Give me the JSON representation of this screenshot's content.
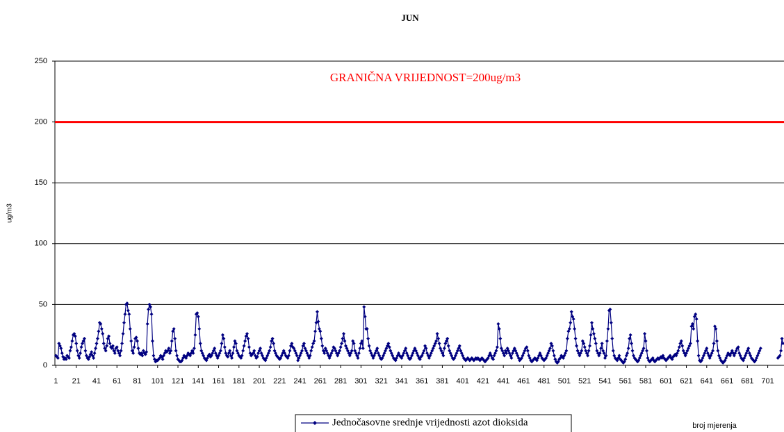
{
  "chart_data": {
    "type": "line",
    "title": "JUN",
    "annotation": "GRANIČNA VRIJEDNOST=200ug/m3",
    "threshold": 200,
    "threshold_color": "#ff0000",
    "y_label": "ug/m3",
    "x_label": "broj mjerenja",
    "xlim": [
      0,
      717
    ],
    "xticks": [
      1,
      21,
      41,
      61,
      81,
      101,
      121,
      141,
      161,
      181,
      201,
      221,
      241,
      261,
      281,
      301,
      321,
      341,
      361,
      381,
      401,
      421,
      441,
      461,
      481,
      501,
      521,
      541,
      561,
      581,
      601,
      621,
      641,
      661,
      681,
      701
    ],
    "ylim": [
      0,
      250
    ],
    "yticks": [
      0,
      50,
      100,
      150,
      200,
      250
    ],
    "grid": true,
    "x": [
      1,
      2,
      3,
      4,
      5,
      6,
      7,
      8,
      9,
      10,
      11,
      12,
      13,
      14,
      15,
      16,
      17,
      18,
      19,
      20,
      21,
      22,
      23,
      24,
      25,
      26,
      27,
      28,
      29,
      30,
      31,
      32,
      33,
      34,
      35,
      36,
      37,
      38,
      39,
      40,
      41,
      42,
      43,
      44,
      45,
      46,
      47,
      48,
      49,
      50,
      51,
      52,
      53,
      54,
      55,
      56,
      57,
      58,
      59,
      60,
      61,
      62,
      63,
      64,
      65,
      66,
      67,
      68,
      69,
      70,
      71,
      72,
      73,
      74,
      75,
      76,
      77,
      78,
      79,
      80,
      81,
      82,
      83,
      84,
      85,
      86,
      87,
      88,
      89,
      90,
      91,
      92,
      93,
      94,
      95,
      96,
      97,
      98,
      99,
      100,
      101,
      102,
      103,
      104,
      105,
      106,
      107,
      108,
      109,
      110,
      111,
      112,
      113,
      114,
      115,
      116,
      117,
      118,
      119,
      120,
      121,
      122,
      123,
      124,
      125,
      126,
      127,
      128,
      129,
      130,
      131,
      132,
      133,
      134,
      135,
      136,
      137,
      138,
      139,
      140,
      141,
      142,
      143,
      144,
      145,
      146,
      147,
      148,
      149,
      150,
      151,
      152,
      153,
      154,
      155,
      156,
      157,
      158,
      159,
      160,
      161,
      162,
      163,
      164,
      165,
      166,
      167,
      168,
      169,
      170,
      171,
      172,
      173,
      174,
      175,
      176,
      177,
      178,
      179,
      180,
      181,
      182,
      183,
      184,
      185,
      186,
      187,
      188,
      189,
      190,
      191,
      192,
      193,
      194,
      195,
      196,
      197,
      198,
      199,
      200,
      201,
      202,
      203,
      204,
      205,
      206,
      207,
      208,
      209,
      210,
      211,
      212,
      213,
      214,
      215,
      216,
      217,
      218,
      219,
      220,
      221,
      222,
      223,
      224,
      225,
      226,
      227,
      228,
      229,
      230,
      231,
      232,
      233,
      234,
      235,
      236,
      237,
      238,
      239,
      240,
      241,
      242,
      243,
      244,
      245,
      246,
      247,
      248,
      249,
      250,
      251,
      252,
      253,
      254,
      255,
      256,
      257,
      258,
      259,
      260,
      261,
      262,
      263,
      264,
      265,
      266,
      267,
      268,
      269,
      270,
      271,
      272,
      273,
      274,
      275,
      276,
      277,
      278,
      279,
      280,
      281,
      282,
      283,
      284,
      285,
      286,
      287,
      288,
      289,
      290,
      291,
      292,
      293,
      294,
      295,
      296,
      297,
      298,
      299,
      300,
      301,
      302,
      303,
      304,
      305,
      306,
      307,
      308,
      309,
      310,
      311,
      312,
      313,
      314,
      315,
      316,
      317,
      318,
      319,
      320,
      321,
      322,
      323,
      324,
      325,
      326,
      327,
      328,
      329,
      330,
      331,
      332,
      333,
      334,
      335,
      336,
      337,
      338,
      339,
      340,
      341,
      342,
      343,
      344,
      345,
      346,
      347,
      348,
      349,
      350,
      351,
      352,
      353,
      354,
      355,
      356,
      357,
      358,
      359,
      360,
      361,
      362,
      363,
      364,
      365,
      366,
      367,
      368,
      369,
      370,
      371,
      372,
      373,
      374,
      375,
      376,
      377,
      378,
      379,
      380,
      381,
      382,
      383,
      384,
      385,
      386,
      387,
      388,
      389,
      390,
      391,
      392,
      393,
      394,
      395,
      396,
      397,
      398,
      399,
      400,
      401,
      402,
      403,
      404,
      405,
      406,
      407,
      408,
      409,
      410,
      411,
      412,
      413,
      414,
      415,
      416,
      417,
      418,
      419,
      420,
      421,
      422,
      423,
      424,
      425,
      426,
      427,
      428,
      429,
      430,
      431,
      432,
      433,
      434,
      435,
      436,
      437,
      438,
      439,
      440,
      441,
      442,
      443,
      444,
      445,
      446,
      447,
      448,
      449,
      450,
      451,
      452,
      453,
      454,
      455,
      456,
      457,
      458,
      459,
      460,
      461,
      462,
      463,
      464,
      465,
      466,
      467,
      468,
      469,
      470,
      471,
      472,
      473,
      474,
      475,
      476,
      477,
      478,
      479,
      480,
      481,
      482,
      483,
      484,
      485,
      486,
      487,
      488,
      489,
      490,
      491,
      492,
      493,
      494,
      495,
      496,
      497,
      498,
      499,
      500,
      501,
      502,
      503,
      504,
      505,
      506,
      507,
      508,
      509,
      510,
      511,
      512,
      513,
      514,
      515,
      516,
      517,
      518,
      519,
      520,
      521,
      522,
      523,
      524,
      525,
      526,
      527,
      528,
      529,
      530,
      531,
      532,
      533,
      534,
      535,
      536,
      537,
      538,
      539,
      540,
      541,
      542,
      543,
      544,
      545,
      546,
      547,
      548,
      549,
      550,
      551,
      552,
      553,
      554,
      555,
      556,
      557,
      558,
      559,
      560,
      561,
      562,
      563,
      564,
      565,
      566,
      567,
      568,
      569,
      570,
      571,
      572,
      573,
      574,
      575,
      576,
      577,
      578,
      579,
      580,
      581,
      582,
      583,
      584,
      585,
      586,
      587,
      588,
      589,
      590,
      591,
      592,
      593,
      594,
      595,
      596,
      597,
      598,
      599,
      600,
      601,
      602,
      603,
      604,
      605,
      606,
      607,
      608,
      609,
      610,
      611,
      612,
      613,
      614,
      615,
      616,
      617,
      618,
      619,
      620,
      621,
      622,
      623,
      624,
      625,
      626,
      627,
      628,
      629,
      630,
      631,
      632,
      633,
      634,
      635,
      636,
      637,
      638,
      639,
      640,
      641,
      642,
      643,
      644,
      645,
      646,
      647,
      648,
      649,
      650,
      651,
      652,
      653,
      654,
      655,
      656,
      657,
      658,
      659,
      660,
      661,
      662,
      663,
      664,
      665,
      666,
      667,
      668,
      669,
      670,
      671,
      672,
      673,
      674,
      675,
      676,
      677,
      678,
      679,
      680,
      681,
      682,
      683,
      684,
      685,
      686,
      687,
      688,
      689,
      690,
      691,
      692,
      693,
      694,
      695,
      696,
      697,
      698,
      699,
      700,
      701,
      702,
      703,
      704,
      705,
      706,
      707,
      708,
      709,
      710,
      711,
      712,
      713,
      714,
      715,
      716
    ],
    "series": [
      {
        "name": "Jednočasovne srednje vrijednosti azot dioksida",
        "color": "#000080",
        "values": [
          8,
          7,
          6,
          18,
          16,
          14,
          10,
          7,
          5,
          6,
          5,
          8,
          7,
          6,
          12,
          15,
          20,
          25,
          26,
          24,
          18,
          12,
          8,
          6,
          10,
          15,
          18,
          20,
          22,
          12,
          8,
          6,
          5,
          7,
          9,
          11,
          8,
          6,
          10,
          14,
          18,
          22,
          28,
          35,
          34,
          30,
          26,
          18,
          14,
          12,
          16,
          22,
          24,
          18,
          15,
          14,
          16,
          12,
          10,
          14,
          15,
          12,
          10,
          8,
          12,
          18,
          26,
          35,
          42,
          50,
          51,
          45,
          42,
          30,
          20,
          12,
          10,
          15,
          22,
          23,
          20,
          14,
          10,
          9,
          10,
          8,
          12,
          10,
          9,
          11,
          34,
          46,
          50,
          48,
          42,
          20,
          8,
          5,
          3,
          4,
          4,
          5,
          6,
          8,
          7,
          5,
          8,
          10,
          12,
          11,
          12,
          14,
          10,
          12,
          20,
          28,
          30,
          22,
          12,
          8,
          5,
          4,
          3,
          3,
          4,
          6,
          8,
          7,
          6,
          8,
          10,
          9,
          8,
          10,
          12,
          10,
          14,
          25,
          42,
          43,
          40,
          30,
          18,
          12,
          10,
          8,
          6,
          5,
          4,
          6,
          8,
          9,
          7,
          8,
          10,
          12,
          14,
          10,
          8,
          6,
          8,
          10,
          12,
          18,
          25,
          22,
          15,
          10,
          8,
          7,
          10,
          12,
          8,
          6,
          10,
          15,
          20,
          18,
          12,
          10,
          8,
          7,
          6,
          8,
          12,
          16,
          20,
          24,
          26,
          22,
          15,
          10,
          8,
          9,
          10,
          12,
          8,
          6,
          7,
          10,
          12,
          14,
          10,
          8,
          6,
          5,
          4,
          6,
          8,
          10,
          12,
          15,
          20,
          22,
          18,
          12,
          10,
          8,
          7,
          6,
          5,
          6,
          8,
          10,
          12,
          10,
          8,
          7,
          6,
          8,
          12,
          16,
          18,
          15,
          14,
          12,
          10,
          8,
          4,
          6,
          8,
          10,
          12,
          16,
          18,
          14,
          12,
          10,
          8,
          6,
          8,
          12,
          15,
          18,
          20,
          28,
          35,
          44,
          36,
          30,
          28,
          22,
          16,
          12,
          10,
          14,
          12,
          10,
          8,
          6,
          8,
          10,
          12,
          15,
          14,
          12,
          10,
          8,
          10,
          12,
          15,
          18,
          22,
          26,
          20,
          16,
          14,
          12,
          10,
          8,
          10,
          12,
          20,
          18,
          12,
          10,
          8,
          6,
          10,
          14,
          18,
          20,
          14,
          48,
          40,
          30,
          30,
          22,
          16,
          12,
          10,
          8,
          6,
          8,
          10,
          12,
          14,
          10,
          8,
          6,
          5,
          6,
          8,
          10,
          12,
          14,
          16,
          18,
          15,
          12,
          10,
          8,
          6,
          5,
          4,
          6,
          8,
          10,
          8,
          7,
          6,
          8,
          10,
          12,
          14,
          10,
          8,
          6,
          5,
          6,
          8,
          10,
          12,
          14,
          12,
          10,
          8,
          6,
          5,
          7,
          8,
          10,
          12,
          16,
          14,
          10,
          8,
          6,
          8,
          10,
          12,
          14,
          16,
          18,
          20,
          26,
          22,
          18,
          14,
          12,
          10,
          8,
          14,
          18,
          20,
          22,
          16,
          12,
          10,
          8,
          6,
          5,
          6,
          8,
          10,
          12,
          14,
          16,
          12,
          10,
          8,
          6,
          5,
          4,
          5,
          6,
          5,
          4,
          5,
          6,
          5,
          4,
          5,
          6,
          5,
          6,
          5,
          4,
          5,
          6,
          5,
          4,
          3,
          4,
          5,
          6,
          8,
          10,
          8,
          6,
          5,
          8,
          10,
          12,
          15,
          34,
          30,
          22,
          14,
          12,
          10,
          8,
          12,
          10,
          14,
          12,
          10,
          8,
          6,
          10,
          12,
          14,
          12,
          10,
          8,
          6,
          4,
          5,
          6,
          8,
          10,
          12,
          14,
          15,
          12,
          8,
          6,
          4,
          3,
          4,
          5,
          6,
          5,
          4,
          6,
          8,
          10,
          8,
          6,
          5,
          4,
          5,
          6,
          8,
          10,
          12,
          14,
          18,
          16,
          12,
          8,
          5,
          3,
          2,
          3,
          5,
          6,
          8,
          7,
          6,
          8,
          10,
          12,
          22,
          28,
          30,
          35,
          44,
          40,
          38,
          30,
          22,
          16,
          12,
          10,
          8,
          10,
          12,
          20,
          18,
          15,
          12,
          10,
          8,
          12,
          16,
          25,
          35,
          30,
          26,
          22,
          18,
          12,
          10,
          8,
          10,
          14,
          18,
          12,
          10,
          6,
          8,
          20,
          30,
          45,
          46,
          35,
          22,
          12,
          8,
          6,
          5,
          4,
          6,
          8,
          5,
          4,
          3,
          2,
          3,
          5,
          8,
          10,
          14,
          22,
          25,
          18,
          12,
          8,
          6,
          5,
          4,
          3,
          4,
          6,
          8,
          10,
          12,
          14,
          26,
          20,
          12,
          6,
          4,
          3,
          4,
          5,
          6,
          4,
          3,
          4,
          5,
          6,
          5,
          6,
          7,
          6,
          8,
          6,
          5,
          4,
          5,
          6,
          7,
          8,
          6,
          5,
          7,
          8,
          9,
          8,
          10,
          12,
          15,
          18,
          20,
          16,
          12,
          10,
          8,
          10,
          12,
          14,
          16,
          18,
          32,
          34,
          30,
          40,
          42,
          38,
          20,
          8,
          4,
          3,
          4,
          6,
          8,
          10,
          12,
          14,
          10,
          8,
          6,
          8,
          10,
          12,
          18,
          32,
          30,
          20,
          12,
          8,
          6,
          4,
          3,
          2,
          3,
          4,
          6,
          8,
          10,
          9,
          8,
          10,
          12,
          10,
          8,
          10,
          12,
          14,
          15,
          10,
          8,
          6,
          5,
          4,
          6,
          8,
          10,
          12,
          14,
          10,
          8,
          6,
          5,
          4,
          3,
          4,
          6,
          8,
          10,
          12,
          14,
          null,
          null,
          null,
          null,
          null,
          null,
          null,
          null,
          null,
          null,
          null,
          null,
          null,
          null,
          null,
          null,
          6,
          7,
          8,
          12,
          22,
          18
        ]
      }
    ]
  }
}
